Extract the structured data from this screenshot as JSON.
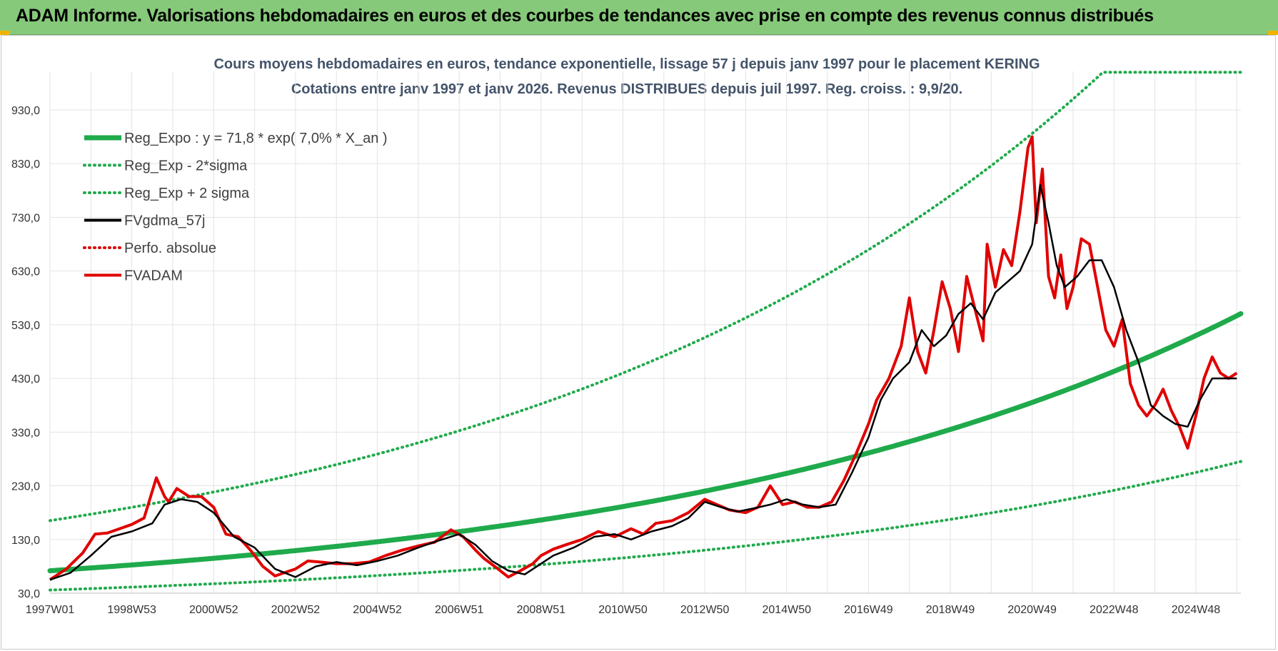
{
  "header": {
    "title": "ADAM Informe. Valorisations hebdomadaires en euros et des courbes de tendances avec prise en compte des revenus connus distribués",
    "bg_color": "#86c97a"
  },
  "chart_data": {
    "type": "line",
    "title_line1": "Cours moyens hebdomadaires en euros, tendance exponentielle, lissage 57 j depuis janv 1997  pour le placement KERING",
    "title_line2": "Cotations entre janv 1997 et janv 2026. Revenus DISTRIBUES depuis juil 1997. Reg. croiss. : 9,9/20.",
    "xlabel": "",
    "ylabel": "",
    "x_tick_labels": [
      "1997W01",
      "1998W53",
      "2000W52",
      "2002W52",
      "2004W52",
      "2006W51",
      "2008W51",
      "2010W50",
      "2012W50",
      "2014W50",
      "2016W49",
      "2018W49",
      "2020W49",
      "2022W48",
      "2024W48"
    ],
    "x_tick_years": [
      1997.0,
      1999.0,
      2001.0,
      2003.0,
      2005.0,
      2007.0,
      2009.0,
      2011.0,
      2013.0,
      2015.0,
      2017.0,
      2019.0,
      2021.0,
      2023.0,
      2025.0
    ],
    "xlim": [
      1997.0,
      2026.1
    ],
    "y_tick_labels": [
      "30,0",
      "130,0",
      "230,0",
      "330,0",
      "430,0",
      "530,0",
      "630,0",
      "730,0",
      "830,0",
      "930,0"
    ],
    "y_ticks": [
      30,
      130,
      230,
      330,
      430,
      530,
      630,
      730,
      830,
      930
    ],
    "ylim": [
      30,
      1000
    ],
    "grid": true,
    "legend_position": "top-left",
    "legend": [
      {
        "label": "Reg_Expo : y = 71,8 * exp( 7,0% *  X_an )",
        "color": "#1faa4b",
        "style": "solid-thick"
      },
      {
        "label": "Reg_Exp - 2*sigma",
        "color": "#1faa4b",
        "style": "dotted"
      },
      {
        "label": "Reg_Exp + 2 sigma",
        "color": "#1faa4b",
        "style": "dotted"
      },
      {
        "label": "FVgdma_57j",
        "color": "#000000",
        "style": "solid"
      },
      {
        "label": "Perfo. absolue",
        "color": "#e00000",
        "style": "dotted"
      },
      {
        "label": "FVADAM",
        "color": "#e00000",
        "style": "solid"
      }
    ],
    "series": [
      {
        "name": "Reg_Expo",
        "color": "#1faa4b",
        "formula": "y = 71.8 * exp(0.07 * X_an)",
        "a": 71.8,
        "b": 0.07,
        "factor": 1.0
      },
      {
        "name": "Reg_Exp - 2*sigma",
        "color": "#1faa4b",
        "a": 71.8,
        "b": 0.07,
        "factor": 0.5
      },
      {
        "name": "Reg_Exp + 2 sigma",
        "color": "#1faa4b",
        "a": 71.8,
        "b": 0.07,
        "factor": 2.3,
        "cap": 1000
      },
      {
        "name": "FVgdma_57j",
        "color": "#000000",
        "x": [
          1997.0,
          1997.5,
          1998.0,
          1998.5,
          1999.0,
          1999.5,
          1999.8,
          2000.2,
          2000.6,
          2001.0,
          2001.5,
          2002.0,
          2002.5,
          2003.0,
          2003.5,
          2004.0,
          2004.5,
          2005.0,
          2005.5,
          2006.0,
          2006.5,
          2007.0,
          2007.4,
          2007.8,
          2008.2,
          2008.6,
          2008.9,
          2009.3,
          2009.8,
          2010.3,
          2010.8,
          2011.2,
          2011.7,
          2012.2,
          2012.6,
          2013.0,
          2013.4,
          2013.8,
          2014.2,
          2014.6,
          2015.0,
          2015.4,
          2015.8,
          2016.2,
          2016.6,
          2017.0,
          2017.3,
          2017.6,
          2018.0,
          2018.3,
          2018.6,
          2018.9,
          2019.2,
          2019.5,
          2019.8,
          2020.1,
          2020.4,
          2020.7,
          2021.0,
          2021.2,
          2021.4,
          2021.6,
          2021.8,
          2022.1,
          2022.4,
          2022.7,
          2023.0,
          2023.3,
          2023.6,
          2023.9,
          2024.2,
          2024.5,
          2024.8,
          2025.1,
          2025.4,
          2025.7,
          2026.0
        ],
        "values": [
          55,
          68,
          100,
          135,
          145,
          160,
          195,
          205,
          200,
          180,
          135,
          115,
          75,
          60,
          80,
          88,
          82,
          90,
          100,
          115,
          128,
          140,
          120,
          90,
          72,
          65,
          80,
          100,
          115,
          135,
          140,
          130,
          145,
          155,
          170,
          200,
          190,
          182,
          188,
          195,
          205,
          195,
          190,
          195,
          255,
          320,
          390,
          430,
          460,
          520,
          490,
          510,
          550,
          570,
          540,
          590,
          610,
          630,
          680,
          790,
          720,
          640,
          600,
          620,
          650,
          650,
          600,
          520,
          460,
          380,
          360,
          345,
          340,
          390,
          430,
          430,
          430
        ]
      },
      {
        "name": "FVADAM",
        "color": "#e00000",
        "x": [
          1997.0,
          1997.4,
          1997.8,
          1998.1,
          1998.4,
          1998.7,
          1999.0,
          1999.3,
          1999.6,
          1999.8,
          1999.9,
          2000.1,
          2000.4,
          2000.7,
          2001.0,
          2001.3,
          2001.6,
          2001.9,
          2002.2,
          2002.5,
          2002.8,
          2003.0,
          2003.3,
          2003.6,
          2004.0,
          2004.4,
          2004.8,
          2005.2,
          2005.6,
          2006.0,
          2006.4,
          2006.8,
          2007.1,
          2007.4,
          2007.6,
          2007.9,
          2008.2,
          2008.5,
          2008.8,
          2009.0,
          2009.3,
          2009.6,
          2010.0,
          2010.4,
          2010.8,
          2011.2,
          2011.5,
          2011.8,
          2012.2,
          2012.6,
          2013.0,
          2013.3,
          2013.6,
          2014.0,
          2014.3,
          2014.6,
          2014.9,
          2015.2,
          2015.5,
          2015.8,
          2016.1,
          2016.4,
          2016.7,
          2017.0,
          2017.2,
          2017.5,
          2017.8,
          2018.0,
          2018.2,
          2018.4,
          2018.6,
          2018.8,
          2019.0,
          2019.2,
          2019.4,
          2019.6,
          2019.8,
          2019.9,
          2020.1,
          2020.3,
          2020.5,
          2020.7,
          2020.9,
          2021.0,
          2021.1,
          2021.25,
          2021.4,
          2021.55,
          2021.7,
          2021.85,
          2022.0,
          2022.2,
          2022.4,
          2022.6,
          2022.8,
          2023.0,
          2023.2,
          2023.4,
          2023.6,
          2023.8,
          2024.0,
          2024.2,
          2024.4,
          2024.6,
          2024.8,
          2025.0,
          2025.2,
          2025.4,
          2025.6,
          2025.8,
          2026.0
        ],
        "values": [
          55,
          75,
          105,
          140,
          142,
          150,
          158,
          170,
          245,
          210,
          200,
          225,
          210,
          210,
          190,
          140,
          135,
          110,
          80,
          62,
          70,
          75,
          90,
          88,
          85,
          85,
          88,
          100,
          110,
          118,
          125,
          148,
          135,
          110,
          95,
          78,
          60,
          72,
          85,
          100,
          112,
          120,
          130,
          145,
          135,
          150,
          140,
          160,
          165,
          180,
          205,
          195,
          185,
          180,
          190,
          230,
          195,
          200,
          190,
          190,
          200,
          240,
          290,
          345,
          390,
          430,
          490,
          580,
          480,
          440,
          520,
          610,
          560,
          480,
          620,
          560,
          500,
          680,
          600,
          670,
          640,
          740,
          860,
          880,
          720,
          820,
          620,
          580,
          660,
          560,
          600,
          690,
          680,
          600,
          520,
          490,
          540,
          420,
          380,
          360,
          380,
          410,
          370,
          340,
          300,
          360,
          430,
          470,
          440,
          430,
          440
        ]
      },
      {
        "name": "Perfo. absolue",
        "color": "#e00000",
        "values": []
      }
    ]
  }
}
